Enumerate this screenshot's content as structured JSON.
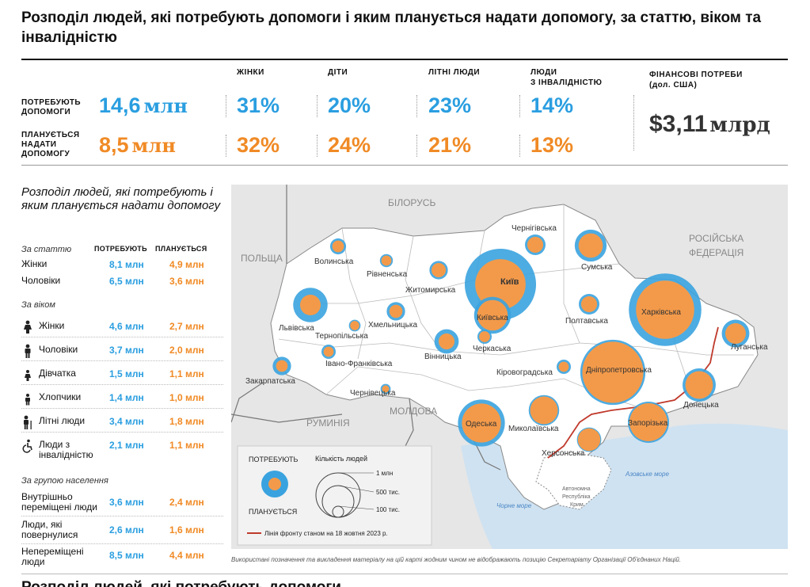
{
  "title": "Розподіл людей, які потребують допомоги і яким планується надати допомогу, за статтю, віком та інвалідністю",
  "summary": {
    "row_need_label": "ПОТРЕБУЮТЬ ДОПОМОГИ",
    "row_need_label_lines": [
      "ПОТРЕБУЮТЬ",
      "ДОПОМОГИ"
    ],
    "row_plan_label_lines": [
      "ПЛАНУЄТЬСЯ",
      "НАДАТИ",
      "ДОПОМОГУ"
    ],
    "col_headers": [
      "ЖІНКИ",
      "ДІТИ",
      "ЛІТНІ ЛЮДИ"
    ],
    "col_disab_lines": [
      "ЛЮДИ",
      "З ІНВАЛІДНІСТЮ"
    ],
    "fin_header_lines": [
      "ФІНАНСОВІ ПОТРЕБИ",
      "(дол. США)"
    ],
    "need_total_num": "14,6",
    "need_total_unit": "млн",
    "plan_total_num": "8,5",
    "plan_total_unit": "млн",
    "need": [
      "31%",
      "20%",
      "23%",
      "14%"
    ],
    "plan": [
      "32%",
      "24%",
      "21%",
      "13%"
    ],
    "fin_num": "$3,11",
    "fin_unit": "млрд"
  },
  "breakdown": {
    "title": "Розподіл людей, які потребують і яким планується надати допомогу",
    "col_need": "ПОТРЕБУЮТЬ",
    "col_plan": "ПЛАНУЄТЬСЯ",
    "sec_sex": "За статтю",
    "sec_age": "За віком",
    "sec_group": "За групою населення",
    "sex": [
      {
        "label": "Жінки",
        "need": "8,1 млн",
        "plan": "4,9 млн"
      },
      {
        "label": "Чоловіки",
        "need": "6,5 млн",
        "plan": "3,6 млн"
      }
    ],
    "age": [
      {
        "label": "Жінки",
        "need": "4,6 млн",
        "plan": "2,7 млн",
        "icon": "woman-icon"
      },
      {
        "label": "Чоловіки",
        "need": "3,7 млн",
        "plan": "2,0 млн",
        "icon": "man-icon"
      },
      {
        "label": "Дівчатка",
        "need": "1,5 млн",
        "plan": "1,1 млн",
        "icon": "girl-icon"
      },
      {
        "label": "Хлопчики",
        "need": "1,4 млн",
        "plan": "1,0 млн",
        "icon": "boy-icon"
      },
      {
        "label": "Літні люди",
        "need": "3,4 млн",
        "plan": "1,8 млн",
        "icon": "elderly-icon"
      },
      {
        "label_lines": [
          "Люди з",
          "інвалідністю"
        ],
        "need": "2,1 млн",
        "plan": "1,1 млн",
        "icon": "wheelchair-icon"
      }
    ],
    "group": [
      {
        "label_lines": [
          "Внутрішньо",
          "переміщені люди"
        ],
        "need": "3,6 млн",
        "plan": "2,4 млн"
      },
      {
        "label_lines": [
          "Люди, які",
          "повернулися"
        ],
        "need": "2,6 млн",
        "plan": "1,6 млн"
      },
      {
        "label_lines": [
          "Непереміщені",
          "люди"
        ],
        "need": "8,5 млн",
        "plan": "4,4 млн"
      }
    ]
  },
  "map": {
    "countries": [
      "БІЛОРУСЬ",
      "ПОЛЬЩА",
      "РУМИНІЯ",
      "МОЛДОВА"
    ],
    "russia_lines": [
      "РОСІЙСЬКА",
      "ФЕДЕРАЦІЯ"
    ],
    "seas": [
      "Азовське море",
      "Чорне море"
    ],
    "crimea_lines": [
      "Автономна",
      "Республіка",
      "Крим"
    ],
    "capital": "Київ",
    "regions": [
      {
        "name": "Волинська",
        "need": 0.15,
        "plan": 0.08
      },
      {
        "name": "Рівненська",
        "need": 0.1,
        "plan": 0.06
      },
      {
        "name": "Житомирська",
        "need": 0.2,
        "plan": 0.12
      },
      {
        "name": "Чернігівська",
        "need": 0.25,
        "plan": 0.15
      },
      {
        "name": "Сумська",
        "need": 0.6,
        "plan": 0.35
      },
      {
        "name": "Київ",
        "need": 3.0,
        "plan": 1.5
      },
      {
        "name": "Київська",
        "need": 0.8,
        "plan": 0.55
      },
      {
        "name": "Харківська",
        "need": 3.1,
        "plan": 2.0
      },
      {
        "name": "Львівська",
        "need": 0.7,
        "plan": 0.25
      },
      {
        "name": "Тернопільська",
        "need": 0.08,
        "plan": 0.05
      },
      {
        "name": "Хмельницька",
        "need": 0.2,
        "plan": 0.1
      },
      {
        "name": "Полтавська",
        "need": 0.25,
        "plan": 0.15
      },
      {
        "name": "Вінницька",
        "need": 0.35,
        "plan": 0.15
      },
      {
        "name": "Черкаська",
        "need": 0.12,
        "plan": 0.07
      },
      {
        "name": "Луганська",
        "need": 0.45,
        "plan": 0.25
      },
      {
        "name": "Закарпатська",
        "need": 0.2,
        "plan": 0.08
      },
      {
        "name": "Івано-Франківська",
        "need": 0.12,
        "plan": 0.06
      },
      {
        "name": "Кіровоградська",
        "need": 0.12,
        "plan": 0.06
      },
      {
        "name": "Дніпропетровська",
        "need": 2.5,
        "plan": 2.2
      },
      {
        "name": "Донецька",
        "need": 0.65,
        "plan": 0.45
      },
      {
        "name": "Чернівецька",
        "need": 0.06,
        "plan": 0.03
      },
      {
        "name": "Миколаївська",
        "need": 0.55,
        "plan": 0.45
      },
      {
        "name": "Одеська",
        "need": 1.3,
        "plan": 0.9
      },
      {
        "name": "Запорізька",
        "need": 1.0,
        "plan": 0.85
      },
      {
        "name": "Херсонська",
        "need": 0.35,
        "plan": 0.3
      }
    ],
    "legend": {
      "need_label": "ПОТРЕБУЮТЬ",
      "plan_label": "ПЛАНУЄТЬСЯ",
      "size_title": "Кількість людей",
      "sizes": [
        "1 млн",
        "500 тис.",
        "100 тис."
      ],
      "frontline": "Лінія фронту станом на 18 жовтня 2023 р."
    },
    "colors": {
      "need": "#3aa3df",
      "plan": "#f39a4a",
      "front": "#c0392b",
      "sea": "#cfe2f1",
      "land": "#ffffff"
    }
  },
  "footnote": "Використані позначення та викладення матеріалу на цій карті жодним чином не відображають позицію Секретаріату Організації Об'єднаних Націй.",
  "next_title_partial": "Розподіл людей, які потребують допомоги"
}
